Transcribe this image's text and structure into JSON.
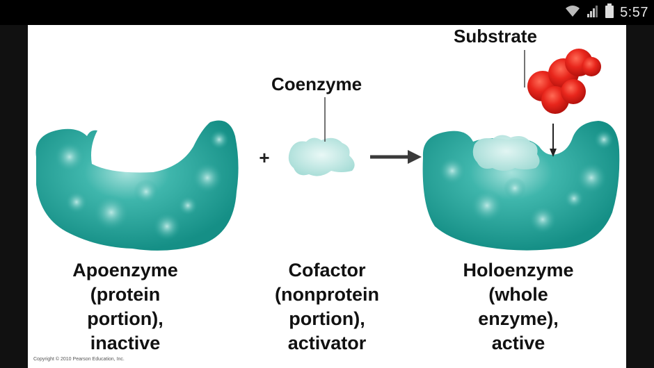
{
  "status_bar": {
    "time": "5:57",
    "icons": [
      "wifi-icon",
      "signal-icon",
      "battery-icon"
    ]
  },
  "slide": {
    "labels": {
      "substrate": "Substrate",
      "coenzyme": "Coenzyme"
    },
    "operator_plus": "+",
    "captions": {
      "apoenzyme": [
        "Apoenzyme",
        "(protein",
        "portion),",
        "inactive"
      ],
      "cofactor": [
        "Cofactor",
        "(nonprotein",
        "portion),",
        "activator"
      ],
      "holoenzyme": [
        "Holoenzyme",
        "(whole",
        "enzyme),",
        "active"
      ]
    },
    "copyright": "Copyright © 2010 Pearson Education, Inc."
  },
  "colors": {
    "enzyme": "#1fa49a",
    "enzyme_highlight": "#8fd8d2",
    "cofactor": "#bfe8e4",
    "substrate": "#e0231c",
    "arrow": "#3a3a3a"
  }
}
